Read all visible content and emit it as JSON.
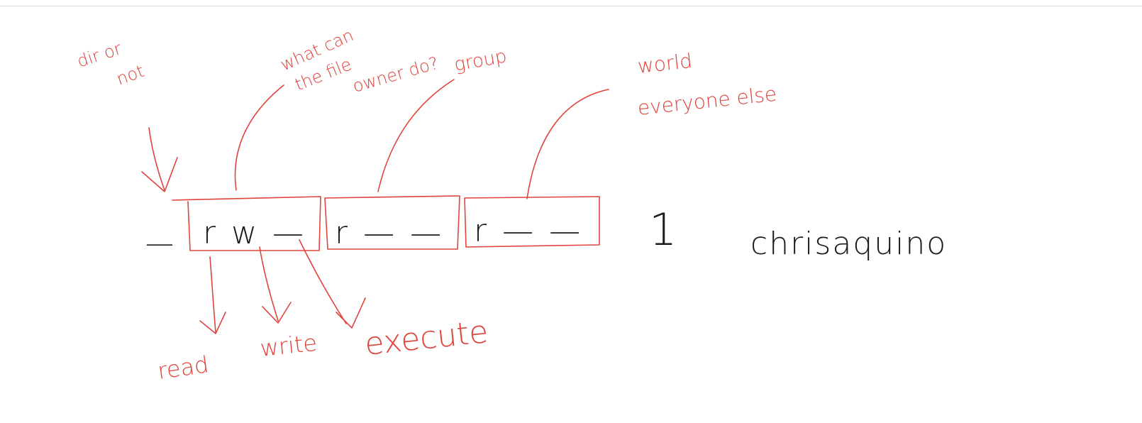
{
  "notes": {
    "dir_line1": "dir or",
    "dir_line2": "not",
    "owner_line1": "what can",
    "owner_line2": "the file",
    "owner_line3": "owner do?",
    "group": "group",
    "world_line1": "world",
    "world_line2": "everyone else",
    "read": "read",
    "write": "write",
    "execute": "execute"
  },
  "permission_string": {
    "type_flag": "—",
    "owner": "r w —",
    "group": "r — —",
    "world": "r — —",
    "link_count": "1",
    "owner_name": "chrisaquino"
  },
  "colors": {
    "annotation": "#e0443c",
    "text": "#1a1a1a",
    "background": "#ffffff"
  }
}
